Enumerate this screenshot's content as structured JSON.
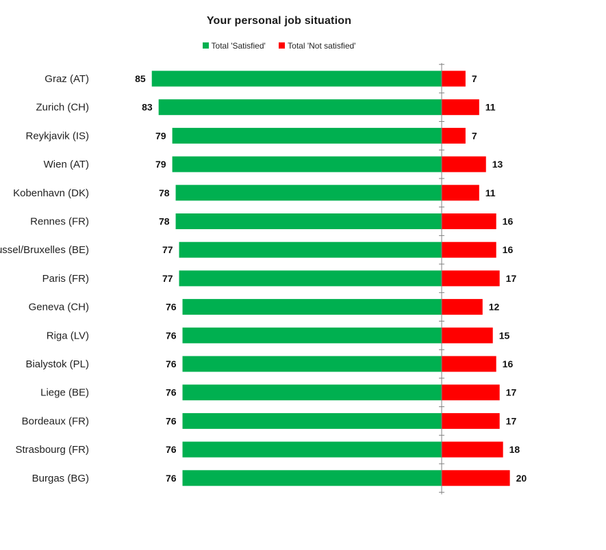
{
  "chart_data": {
    "type": "bar",
    "orientation": "horizontal-diverging",
    "title": "Your personal job situation",
    "categories": [
      "Graz (AT)",
      "Zurich (CH)",
      "Reykjavik (IS)",
      "Wien (AT)",
      "Kobenhavn (DK)",
      "Rennes (FR)",
      "Brussel/Bruxelles (BE)",
      "Paris (FR)",
      "Geneva (CH)",
      "Riga (LV)",
      "Bialystok (PL)",
      "Liege (BE)",
      "Bordeaux (FR)",
      "Strasbourg (FR)",
      "Burgas (BG)"
    ],
    "series": [
      {
        "name": "Total 'Satisfied'",
        "color": "#00b050",
        "direction": "left",
        "values": [
          85,
          83,
          79,
          79,
          78,
          78,
          77,
          77,
          76,
          76,
          76,
          76,
          76,
          76,
          76
        ]
      },
      {
        "name": "Total 'Not satisfied'",
        "color": "#ff0000",
        "direction": "right",
        "values": [
          7,
          11,
          7,
          13,
          11,
          16,
          16,
          17,
          12,
          15,
          16,
          17,
          17,
          18,
          20
        ]
      }
    ],
    "legend_position": "top",
    "grid": false
  }
}
